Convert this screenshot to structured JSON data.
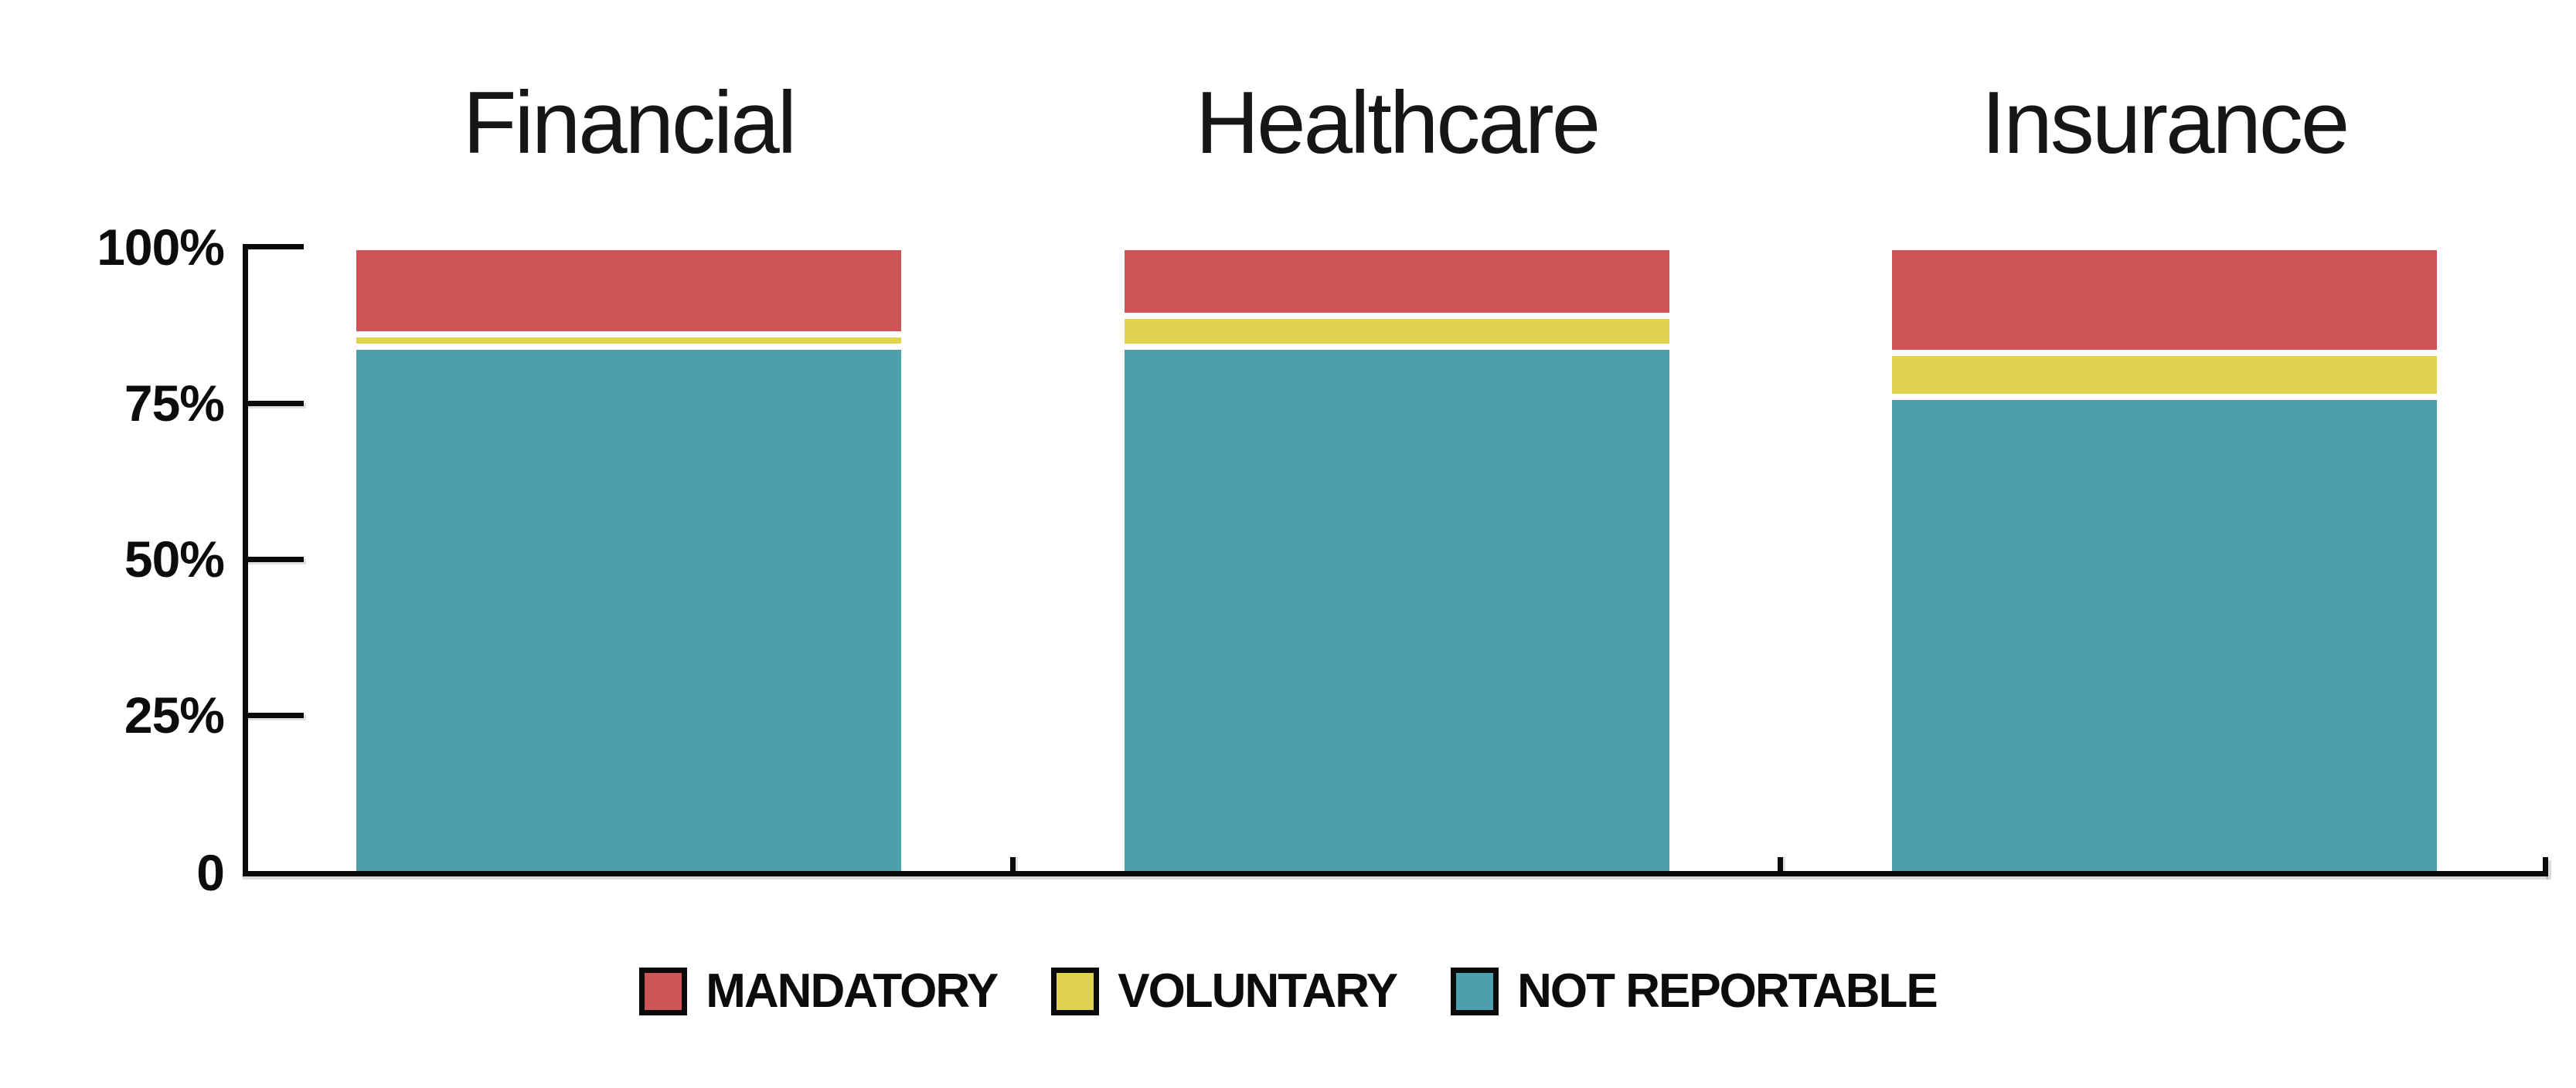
{
  "chart_data": {
    "type": "bar",
    "stacked": true,
    "orientation": "vertical",
    "value_unit": "percent",
    "categories": [
      "Financial",
      "Healthcare",
      "Insurance"
    ],
    "series": [
      {
        "name": "MANDATORY",
        "color": "#cd5558",
        "values": [
          14,
          11,
          17
        ]
      },
      {
        "name": "VOLUNTARY",
        "color": "#ded24f",
        "values": [
          2,
          5,
          7
        ]
      },
      {
        "name": "NOT REPORTABLE",
        "color": "#4c9fac",
        "values": [
          84,
          84,
          76
        ]
      }
    ],
    "ylim": [
      0,
      100
    ],
    "yticks": [
      {
        "value": 100,
        "label": "100%"
      },
      {
        "value": 75,
        "label": "75%"
      },
      {
        "value": 50,
        "label": "50%"
      },
      {
        "value": 25,
        "label": "25%"
      },
      {
        "value": 0,
        "label": "0"
      }
    ],
    "xlabel": "",
    "ylabel": "",
    "grid": false,
    "legend_position": "bottom",
    "segment_border_color": "#ffffff",
    "axis_color": "#0a0a0a",
    "background": "#ffffff"
  }
}
